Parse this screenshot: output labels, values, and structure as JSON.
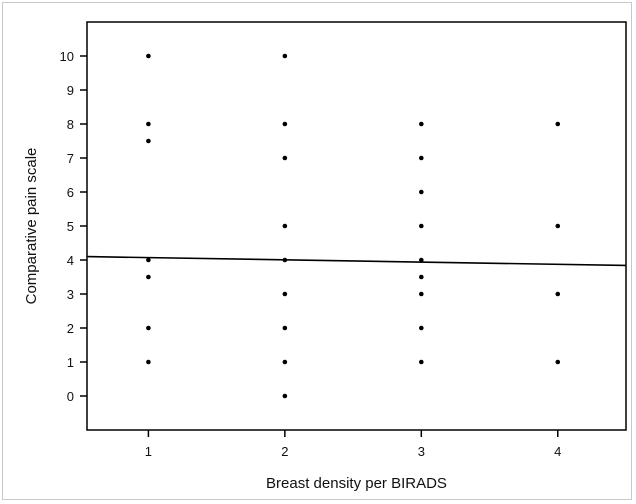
{
  "chart_data": {
    "type": "scatter",
    "xlabel": "Breast density per BIRADS",
    "ylabel": "Comparative pain scale",
    "xlim": [
      0.55,
      4.5
    ],
    "ylim": [
      -1,
      11
    ],
    "x_ticks": [
      1,
      2,
      3,
      4
    ],
    "y_ticks": [
      0,
      1,
      2,
      3,
      4,
      5,
      6,
      7,
      8,
      9,
      10
    ],
    "grid": false,
    "points": [
      {
        "x": 1,
        "y": 10
      },
      {
        "x": 1,
        "y": 8
      },
      {
        "x": 1,
        "y": 7.5
      },
      {
        "x": 1,
        "y": 4
      },
      {
        "x": 1,
        "y": 3.5
      },
      {
        "x": 1,
        "y": 2
      },
      {
        "x": 1,
        "y": 1
      },
      {
        "x": 2,
        "y": 10
      },
      {
        "x": 2,
        "y": 8
      },
      {
        "x": 2,
        "y": 7
      },
      {
        "x": 2,
        "y": 5
      },
      {
        "x": 2,
        "y": 4
      },
      {
        "x": 2,
        "y": 3
      },
      {
        "x": 2,
        "y": 2
      },
      {
        "x": 2,
        "y": 1
      },
      {
        "x": 2,
        "y": 0
      },
      {
        "x": 3,
        "y": 8
      },
      {
        "x": 3,
        "y": 7
      },
      {
        "x": 3,
        "y": 6
      },
      {
        "x": 3,
        "y": 5
      },
      {
        "x": 3,
        "y": 4
      },
      {
        "x": 3,
        "y": 3.5
      },
      {
        "x": 3,
        "y": 3
      },
      {
        "x": 3,
        "y": 2
      },
      {
        "x": 3,
        "y": 1
      },
      {
        "x": 4,
        "y": 8
      },
      {
        "x": 4,
        "y": 5
      },
      {
        "x": 4,
        "y": 3
      },
      {
        "x": 4,
        "y": 1
      }
    ],
    "fit_line": {
      "x": [
        0.55,
        4.5
      ],
      "y": [
        4.1,
        3.84
      ]
    }
  }
}
